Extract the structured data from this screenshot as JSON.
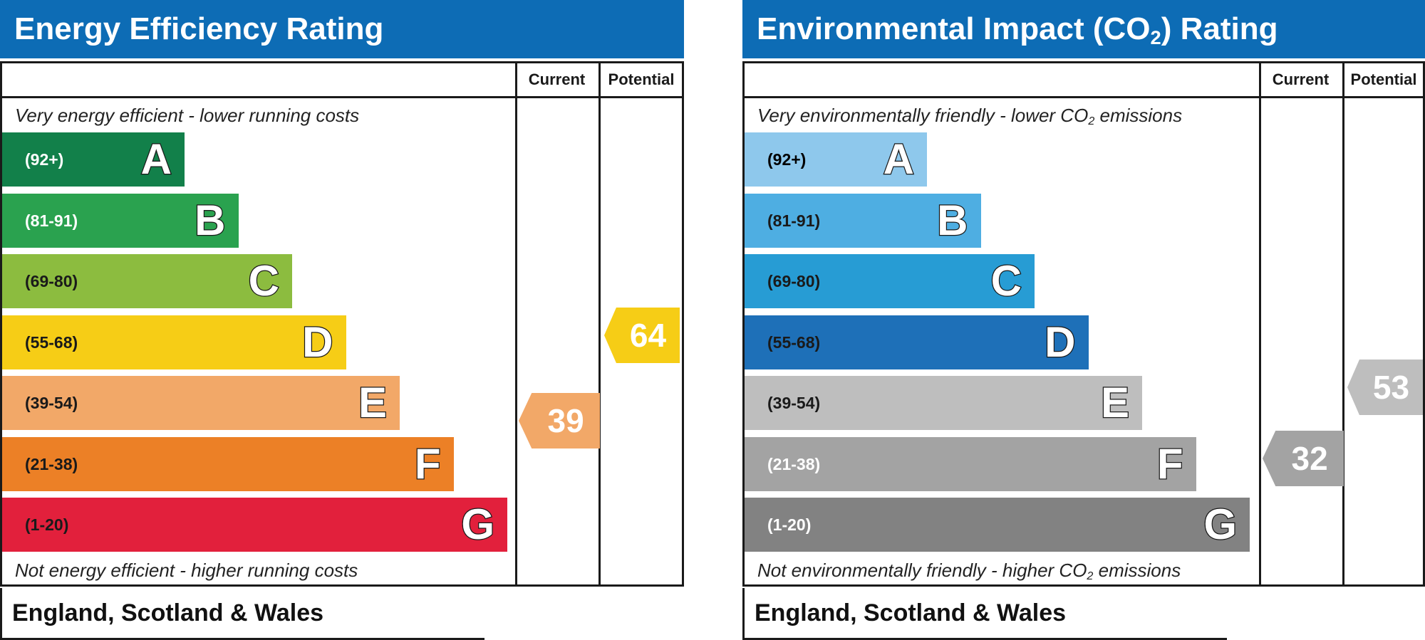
{
  "chart_data": [
    {
      "type": "bar",
      "title": "Energy Efficiency Rating",
      "columns": [
        "Current",
        "Potential"
      ],
      "top_note": "Very energy efficient - lower running costs",
      "bottom_note": "Not energy efficient - higher running costs",
      "region": "England, Scotland & Wales",
      "bands": [
        {
          "letter": "A",
          "range": "(92+)",
          "color": "#12804a",
          "text_color": "#ffffff",
          "rank": 1
        },
        {
          "letter": "B",
          "range": "(81-91)",
          "color": "#2aa24f",
          "text_color": "#ffffff",
          "rank": 2
        },
        {
          "letter": "C",
          "range": "(69-80)",
          "color": "#8cbc3f",
          "text_color": "#1a1a1a",
          "rank": 3
        },
        {
          "letter": "D",
          "range": "(55-68)",
          "color": "#f6cd16",
          "text_color": "#1a1a1a",
          "rank": 4
        },
        {
          "letter": "E",
          "range": "(39-54)",
          "color": "#f2a868",
          "text_color": "#1a1a1a",
          "rank": 5
        },
        {
          "letter": "F",
          "range": "(21-38)",
          "color": "#ec8026",
          "text_color": "#1a1a1a",
          "rank": 6
        },
        {
          "letter": "G",
          "range": "(1-20)",
          "color": "#e2203c",
          "text_color": "#1a1a1a",
          "rank": 7
        }
      ],
      "current": {
        "value": 39,
        "band": "E",
        "color": "#f2a868"
      },
      "potential": {
        "value": 64,
        "band": "D",
        "color": "#f6cd16"
      }
    },
    {
      "type": "bar",
      "title": "Environmental Impact (CO",
      "title_sub": "2",
      "title_end": ") Rating",
      "columns": [
        "Current",
        "Potential"
      ],
      "top_note": "Very environmentally friendly - lower CO",
      "top_note_sub": "2",
      "top_note_end": " emissions",
      "bottom_note": "Not environmentally friendly - higher CO",
      "bottom_note_sub": "2",
      "bottom_note_end": " emissions",
      "region": "England, Scotland & Wales",
      "bands": [
        {
          "letter": "A",
          "range": "(92+)",
          "color": "#8ec8ec",
          "text_color": "#000000",
          "rank": 1
        },
        {
          "letter": "B",
          "range": "(81-91)",
          "color": "#4eaee2",
          "text_color": "#1a1a1a",
          "rank": 2
        },
        {
          "letter": "C",
          "range": "(69-80)",
          "color": "#279cd4",
          "text_color": "#1a1a1a",
          "rank": 3
        },
        {
          "letter": "D",
          "range": "(55-68)",
          "color": "#1e70b8",
          "text_color": "#1a1a1a",
          "rank": 4
        },
        {
          "letter": "E",
          "range": "(39-54)",
          "color": "#bebebe",
          "text_color": "#1a1a1a",
          "rank": 5
        },
        {
          "letter": "F",
          "range": "(21-38)",
          "color": "#a3a3a3",
          "text_color": "#ffffff",
          "rank": 6
        },
        {
          "letter": "G",
          "range": "(1-20)",
          "color": "#828282",
          "text_color": "#ffffff",
          "rank": 7
        }
      ],
      "current": {
        "value": 32,
        "band": "F",
        "color": "#a3a3a3"
      },
      "potential": {
        "value": 53,
        "band": "E",
        "color": "#bebebe"
      }
    }
  ]
}
